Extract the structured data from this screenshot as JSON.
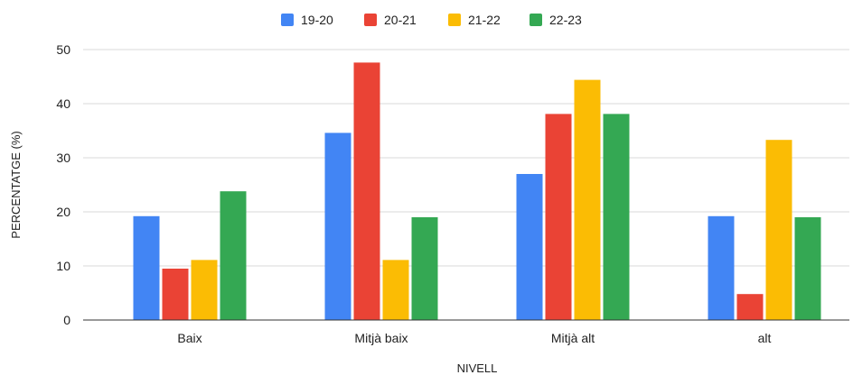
{
  "chart_data": {
    "type": "bar",
    "categories": [
      "Baix",
      "Mitjà baix",
      "Mitjà alt",
      "alt"
    ],
    "series": [
      {
        "name": "19-20",
        "color": "#4285F4",
        "values": [
          19.2,
          34.6,
          27.0,
          19.2
        ]
      },
      {
        "name": "20-21",
        "color": "#EA4335",
        "values": [
          9.5,
          47.6,
          38.1,
          4.8
        ]
      },
      {
        "name": "21-22",
        "color": "#FBBC04",
        "values": [
          11.1,
          11.1,
          44.4,
          33.3
        ]
      },
      {
        "name": "22-23",
        "color": "#34A853",
        "values": [
          23.8,
          19.0,
          38.1,
          19.0
        ]
      }
    ],
    "xlabel": "NIVELL",
    "ylabel": "PERCENTATGE (%)",
    "ylim": [
      0,
      50
    ],
    "yticks": [
      "0",
      "10",
      "20",
      "30",
      "40",
      "50"
    ],
    "grid": true,
    "legend_position": "top-center"
  }
}
